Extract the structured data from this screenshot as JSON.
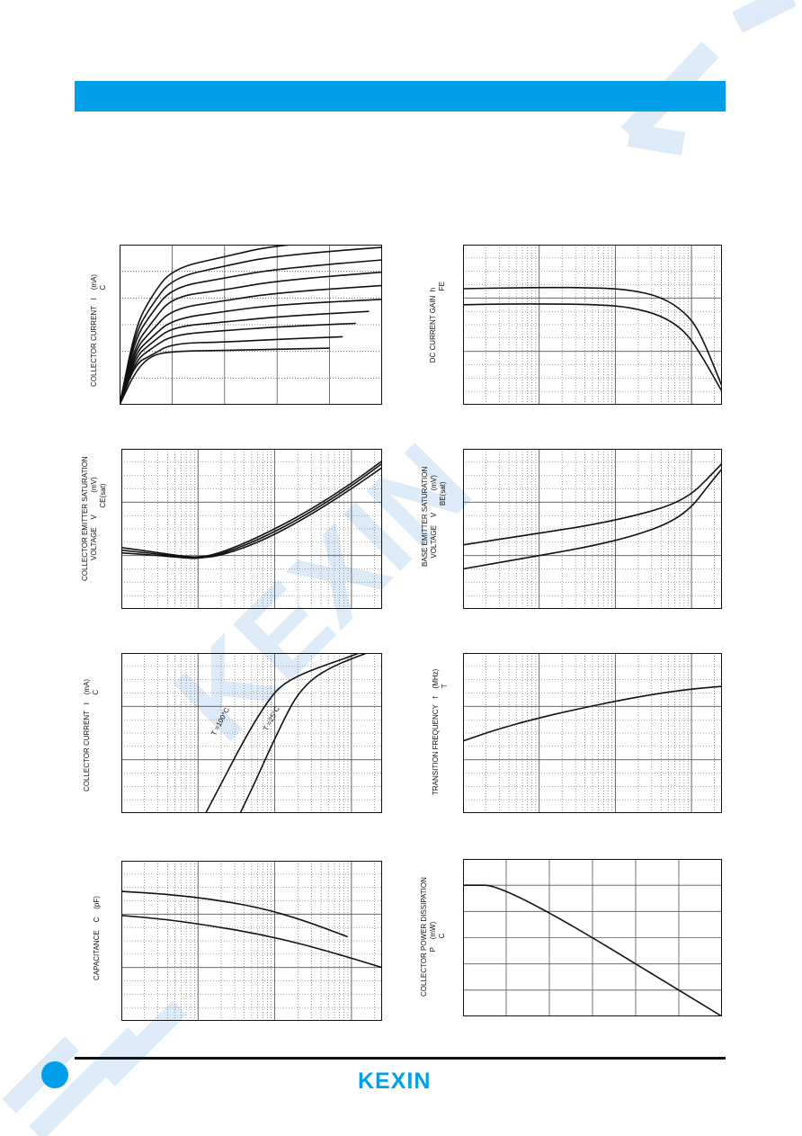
{
  "colors": {
    "accent": "#00a0e9",
    "watermark": "#dcebf7",
    "ink": "#111111",
    "grid": "#555555"
  },
  "brand": {
    "name": "KEXIN",
    "watermark_text": "KEXIN"
  },
  "chart_data": [
    {
      "type": "line",
      "scale": "linear",
      "xlim": [
        0,
        10
      ],
      "ylim": [
        0,
        6
      ],
      "ylabel": "COLLECTOR CURRENT   I    (mA)\n                                           C",
      "title": "",
      "xlabel": "",
      "grid": true,
      "series": [
        {
          "x": [
            0,
            0.6,
            1.2,
            2,
            4,
            6,
            8
          ],
          "y": [
            0,
            1.25,
            1.85,
            2.0,
            2.04,
            2.08,
            2.12
          ]
        },
        {
          "x": [
            0,
            0.6,
            1.2,
            2,
            4,
            6,
            8.5
          ],
          "y": [
            0,
            1.55,
            1.85,
            2.3,
            2.35,
            2.45,
            2.55
          ]
        },
        {
          "x": [
            0,
            0.6,
            1.2,
            2,
            4,
            6,
            9
          ],
          "y": [
            0,
            1.65,
            2.1,
            2.62,
            2.78,
            2.92,
            3.05
          ]
        },
        {
          "x": [
            0,
            0.6,
            1.2,
            2,
            4,
            6,
            9.5
          ],
          "y": [
            0,
            1.8,
            2.3,
            2.92,
            3.1,
            3.3,
            3.5
          ]
        },
        {
          "x": [
            0,
            0.6,
            1.2,
            2,
            4,
            6,
            10
          ],
          "y": [
            0,
            1.95,
            2.5,
            3.2,
            3.5,
            3.75,
            3.95
          ]
        },
        {
          "x": [
            0,
            0.6,
            1.2,
            2,
            4,
            6,
            10.5
          ],
          "y": [
            0,
            2.1,
            2.75,
            3.6,
            3.9,
            4.2,
            4.5
          ]
        },
        {
          "x": [
            0,
            0.6,
            1.2,
            2,
            4,
            6,
            11
          ],
          "y": [
            0,
            2.25,
            3.05,
            4.05,
            4.3,
            4.65,
            5.05
          ]
        },
        {
          "x": [
            0,
            0.6,
            1.2,
            2,
            4,
            6,
            11.5
          ],
          "y": [
            0,
            2.5,
            3.4,
            4.4,
            4.75,
            5.1,
            5.55
          ]
        },
        {
          "x": [
            0,
            0.6,
            1.2,
            2,
            4,
            6,
            12
          ],
          "y": [
            0,
            2.7,
            3.7,
            4.75,
            5.2,
            5.6,
            6.05
          ]
        },
        {
          "x": [
            0,
            0.6,
            1.2,
            2,
            4,
            6,
            12.5
          ],
          "y": [
            0,
            2.9,
            4.05,
            5.1,
            5.55,
            6.0,
            6.5
          ]
        }
      ]
    },
    {
      "type": "line",
      "scale": "log",
      "xlim": [
        0,
        3.4
      ],
      "ylim": [
        0,
        6
      ],
      "ylabel": "DC CURRENT GAIN  h\n                                       FE",
      "title": "",
      "xlabel": "",
      "grid": true,
      "series": [
        {
          "x": [
            0,
            0.6,
            1.2,
            1.8,
            2.2,
            2.6,
            2.9,
            3.1,
            3.4
          ],
          "y": [
            4.35,
            4.38,
            4.4,
            4.38,
            4.3,
            4.05,
            3.5,
            2.8,
            0.7
          ]
        },
        {
          "x": [
            0,
            0.6,
            1.2,
            1.8,
            2.2,
            2.6,
            2.9,
            3.1,
            3.4
          ],
          "y": [
            3.75,
            3.78,
            3.78,
            3.75,
            3.65,
            3.35,
            2.8,
            2.0,
            0.5
          ]
        }
      ]
    },
    {
      "type": "line",
      "scale": "log",
      "xlim": [
        0,
        3.4
      ],
      "ylim": [
        0,
        6
      ],
      "ylabel": "COLLECTOR EMITTER SATURATION\nVOLTAGE    V           (mV)\n                       CE(sat)",
      "title": "",
      "xlabel": "",
      "grid": true,
      "series": [
        {
          "x": [
            0,
            0.5,
            0.8,
            1.0,
            1.3,
            1.8,
            2.4,
            3.0,
            3.4
          ],
          "y": [
            2.2,
            2.05,
            1.95,
            1.9,
            2.0,
            2.5,
            3.4,
            4.5,
            5.3
          ]
        },
        {
          "x": [
            0,
            0.5,
            0.8,
            1.0,
            1.3,
            1.8,
            2.4,
            3.0,
            3.4
          ],
          "y": [
            2.1,
            2.0,
            1.92,
            1.88,
            2.05,
            2.6,
            3.5,
            4.6,
            5.45
          ]
        },
        {
          "x": [
            0,
            0.5,
            0.8,
            1.0,
            1.3,
            1.8,
            2.4,
            3.0,
            3.4
          ],
          "y": [
            2.3,
            2.1,
            1.98,
            1.92,
            2.1,
            2.7,
            3.6,
            4.7,
            5.55
          ]
        }
      ]
    },
    {
      "type": "line",
      "scale": "log",
      "xlim": [
        0,
        3.4
      ],
      "ylim": [
        0,
        6
      ],
      "ylabel": "BASE EMITTER SATURATION\nVOLTAGE    V           (mV)\n                       BE(sat)",
      "title": "",
      "xlabel": "",
      "grid": true,
      "series": [
        {
          "x": [
            0,
            0.8,
            1.6,
            2.2,
            2.7,
            3.0,
            3.2,
            3.4
          ],
          "y": [
            2.4,
            2.75,
            3.1,
            3.45,
            3.85,
            4.3,
            4.85,
            5.45
          ]
        },
        {
          "x": [
            0,
            0.8,
            1.6,
            2.2,
            2.7,
            3.0,
            3.2,
            3.4
          ],
          "y": [
            1.5,
            1.9,
            2.3,
            2.7,
            3.2,
            3.8,
            4.55,
            5.25
          ]
        }
      ]
    },
    {
      "type": "line",
      "scale": "log",
      "xlim": [
        0,
        3.4
      ],
      "ylim": [
        0,
        7
      ],
      "ylabel": "COLLECTOR CURRENT   I    (mA)\n                                           C",
      "title": "",
      "xlabel": "",
      "grid": true,
      "labels": [
        "T =100°C",
        "T =25°C"
      ],
      "series": [
        {
          "x": [
            1.1,
            1.35,
            1.6,
            1.85,
            2.05,
            2.3,
            2.6,
            2.9,
            3.1
          ],
          "y": [
            0,
            1.6,
            3.2,
            4.6,
            5.5,
            6.0,
            6.4,
            6.75,
            7.0
          ]
        },
        {
          "x": [
            1.55,
            1.75,
            1.95,
            2.15,
            2.3,
            2.5,
            2.75,
            3.0,
            3.2
          ],
          "y": [
            0,
            1.4,
            2.9,
            4.3,
            5.2,
            5.9,
            6.4,
            6.75,
            7.0
          ]
        }
      ]
    },
    {
      "type": "line",
      "scale": "log",
      "xlim": [
        0,
        3.4
      ],
      "ylim": [
        0,
        6
      ],
      "ylabel": "TRANSITION FREQUENCY   f    (MHz)\n                                              T",
      "title": "",
      "xlabel": "",
      "grid": true,
      "series": [
        {
          "x": [
            0,
            0.4,
            0.9,
            1.5,
            2.1,
            2.6,
            3.0,
            3.4
          ],
          "y": [
            2.7,
            3.1,
            3.5,
            3.9,
            4.25,
            4.5,
            4.65,
            4.75
          ]
        }
      ]
    },
    {
      "type": "line",
      "scale": "log",
      "xlim": [
        0,
        3.4
      ],
      "ylim": [
        0,
        6
      ],
      "ylabel": "CAPACITANCE    C    (pF)",
      "title": "",
      "xlabel": "",
      "grid": true,
      "series": [
        {
          "x": [
            0,
            0.6,
            1.2,
            1.8,
            2.4,
            2.95
          ],
          "y": [
            4.85,
            4.75,
            4.55,
            4.25,
            3.75,
            3.15
          ]
        },
        {
          "x": [
            0,
            0.6,
            1.2,
            1.8,
            2.4,
            3.0,
            3.4
          ],
          "y": [
            3.95,
            3.8,
            3.55,
            3.25,
            2.85,
            2.35,
            2.0
          ]
        }
      ]
    },
    {
      "type": "line",
      "scale": "linear",
      "xlim": [
        0,
        6
      ],
      "ylim": [
        0,
        6
      ],
      "ylabel": "COLLECTOR POWER DISSIPATION\nP    (mW)\n C",
      "title": "",
      "xlabel": "",
      "grid": true,
      "series": [
        {
          "x": [
            0,
            1,
            6
          ],
          "y": [
            5,
            5,
            0
          ]
        }
      ]
    }
  ]
}
